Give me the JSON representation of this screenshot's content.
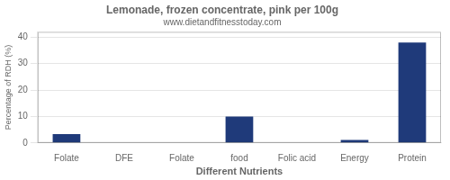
{
  "chart_data": {
    "type": "bar",
    "title": "Lemonade, frozen concentrate, pink per 100g",
    "subtitle": "www.dietandfitnesstoday.com",
    "xlabel": "Different Nutrients",
    "ylabel": "Percentage of RDH (%)",
    "categories": [
      "Folate",
      "DFE",
      "Folate",
      "food",
      "Folic acid",
      "Energy",
      "Protein"
    ],
    "values": [
      3.3,
      0,
      0,
      10.0,
      0,
      1.1,
      38.0
    ],
    "color": "#1F3A7A",
    "ylim": [
      0,
      42
    ],
    "yticks": [
      0,
      10,
      20,
      30,
      40
    ],
    "grid": true
  }
}
